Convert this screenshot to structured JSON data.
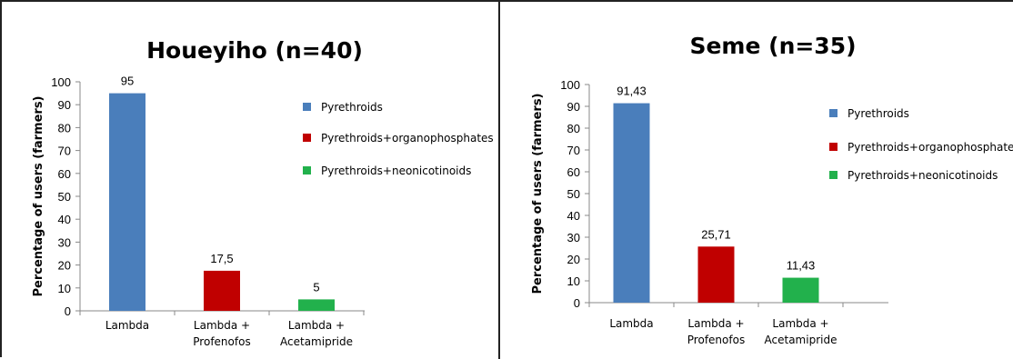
{
  "chart_data": [
    {
      "type": "bar",
      "title": "Houeyiho (n=40)",
      "ylabel": "Percentage of users (farmers)",
      "xlabel": "",
      "ylim": [
        0,
        100
      ],
      "yticks": [
        0,
        10,
        20,
        30,
        40,
        50,
        60,
        70,
        80,
        90,
        100
      ],
      "categories": [
        [
          "Lambda"
        ],
        [
          "Lambda +",
          "Profenofos"
        ],
        [
          "Lambda +",
          "Acetamipride"
        ]
      ],
      "values": [
        95,
        17.5,
        5
      ],
      "value_labels": [
        "95",
        "17,5",
        "5"
      ],
      "colors": [
        "#4a7ebb",
        "#c00000",
        "#22b14c"
      ],
      "legend": [
        "Pyrethroids",
        "Pyrethroids+organophosphates",
        "Pyrethroids+neonicotinoids"
      ],
      "legend_position": "right",
      "grid": false
    },
    {
      "type": "bar",
      "title": "Seme (n=35)",
      "ylabel": "Percentage of users (farmers)",
      "xlabel": "",
      "ylim": [
        0,
        100
      ],
      "yticks": [
        0,
        10,
        20,
        30,
        40,
        50,
        60,
        70,
        80,
        90,
        100
      ],
      "categories": [
        [
          "Lambda"
        ],
        [
          "Lambda +",
          "Profenofos"
        ],
        [
          "Lambda +",
          "Acetamipride"
        ]
      ],
      "values": [
        91.43,
        25.71,
        11.43
      ],
      "value_labels": [
        "91,43",
        "25,71",
        "11,43"
      ],
      "colors": [
        "#4a7ebb",
        "#c00000",
        "#22b14c"
      ],
      "legend": [
        "Pyrethroids",
        "Pyrethroids+organophosphates",
        "Pyrethroids+neonicotinoids"
      ],
      "legend_position": "right",
      "grid": false
    }
  ]
}
